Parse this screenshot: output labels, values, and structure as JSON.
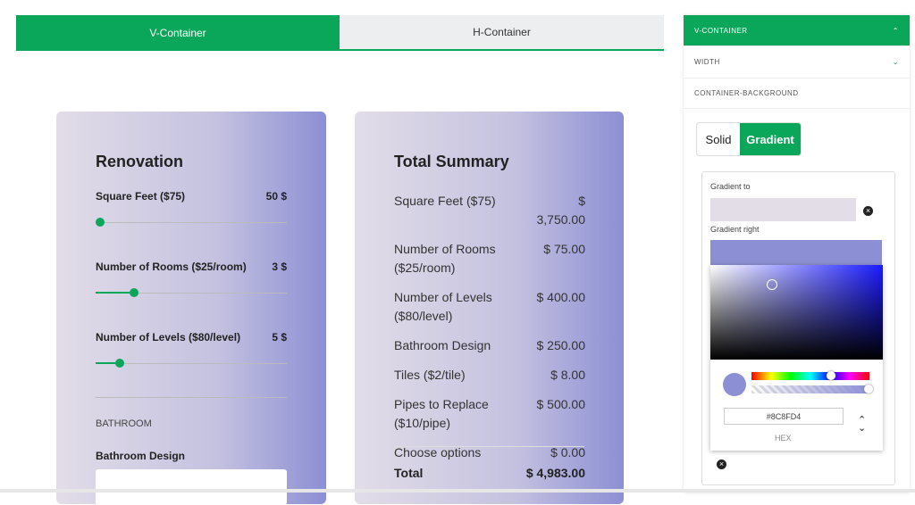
{
  "tabs": [
    "V-Container",
    "H-Container"
  ],
  "calculator": {
    "title": "Renovation",
    "sliders": [
      {
        "label": "Square Feet ($75)",
        "value": "50 $"
      },
      {
        "label": "Number of Rooms ($25/room)",
        "value": "3 $"
      },
      {
        "label": "Number of Levels ($80/level)",
        "value": "5 $"
      }
    ],
    "section": "BATHROOM",
    "field_label": "Bathroom Design"
  },
  "summary": {
    "title": "Total Summary",
    "rows": [
      [
        "Square Feet ($75)",
        "$ 3,750.00"
      ],
      [
        "Number of Rooms ($25/room)",
        "$ 75.00"
      ],
      [
        "Number of Levels ($80/level)",
        "$ 400.00"
      ],
      [
        "Bathroom Design",
        "$ 250.00"
      ],
      [
        "Tiles ($2/tile)",
        "$ 8.00"
      ],
      [
        "Pipes to Replace ($10/pipe)",
        "$ 500.00"
      ],
      [
        "Choose options",
        "$ 0.00"
      ]
    ],
    "total": [
      "Total",
      "$ 4,983.00"
    ]
  },
  "panel": {
    "header": "V-CONTAINER",
    "items": [
      "WIDTH",
      "CONTAINER-BACKGROUND"
    ],
    "modes": [
      "Solid",
      "Gradient"
    ],
    "gradient_to": "Gradient to",
    "gradient_right": "Gradient right",
    "hex": "#8C8FD4",
    "hex_label": "HEX"
  }
}
